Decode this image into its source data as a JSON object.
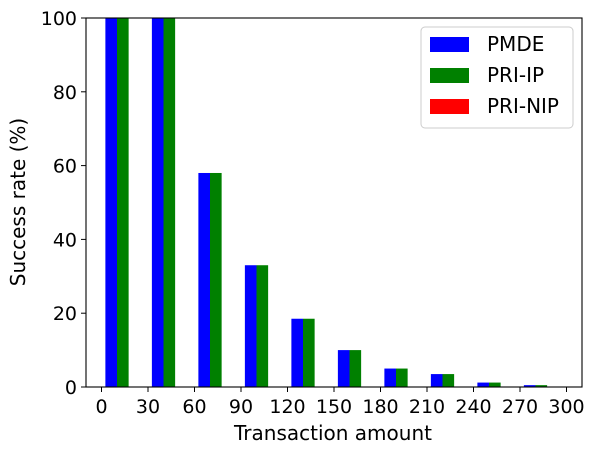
{
  "chart_data": {
    "type": "bar",
    "xlabel": "Transaction amount",
    "ylabel": "Success rate (%)",
    "xlim": [
      -10,
      310
    ],
    "ylim": [
      0,
      100
    ],
    "xticks": [
      0,
      30,
      60,
      90,
      120,
      150,
      180,
      210,
      240,
      270,
      300
    ],
    "yticks": [
      0,
      20,
      40,
      60,
      80,
      100
    ],
    "x": [
      10,
      40,
      70,
      100,
      130,
      160,
      190,
      220,
      250,
      280
    ],
    "bar_width": 7.5,
    "grid": false,
    "legend_position": "top-right",
    "series": [
      {
        "name": "PMDE",
        "color": "#0000ff",
        "values": [
          100,
          100,
          58,
          33,
          18.5,
          10,
          5,
          3.5,
          1.2,
          0.5
        ]
      },
      {
        "name": "PRI-IP",
        "color": "#008000",
        "values": [
          100,
          100,
          58,
          33,
          18.5,
          10,
          5,
          3.5,
          1.2,
          0.5
        ]
      },
      {
        "name": "PRI-NIP",
        "color": "#ff0000",
        "values": [
          0,
          0,
          0,
          0,
          0,
          0,
          0,
          0,
          0,
          0
        ]
      }
    ]
  }
}
